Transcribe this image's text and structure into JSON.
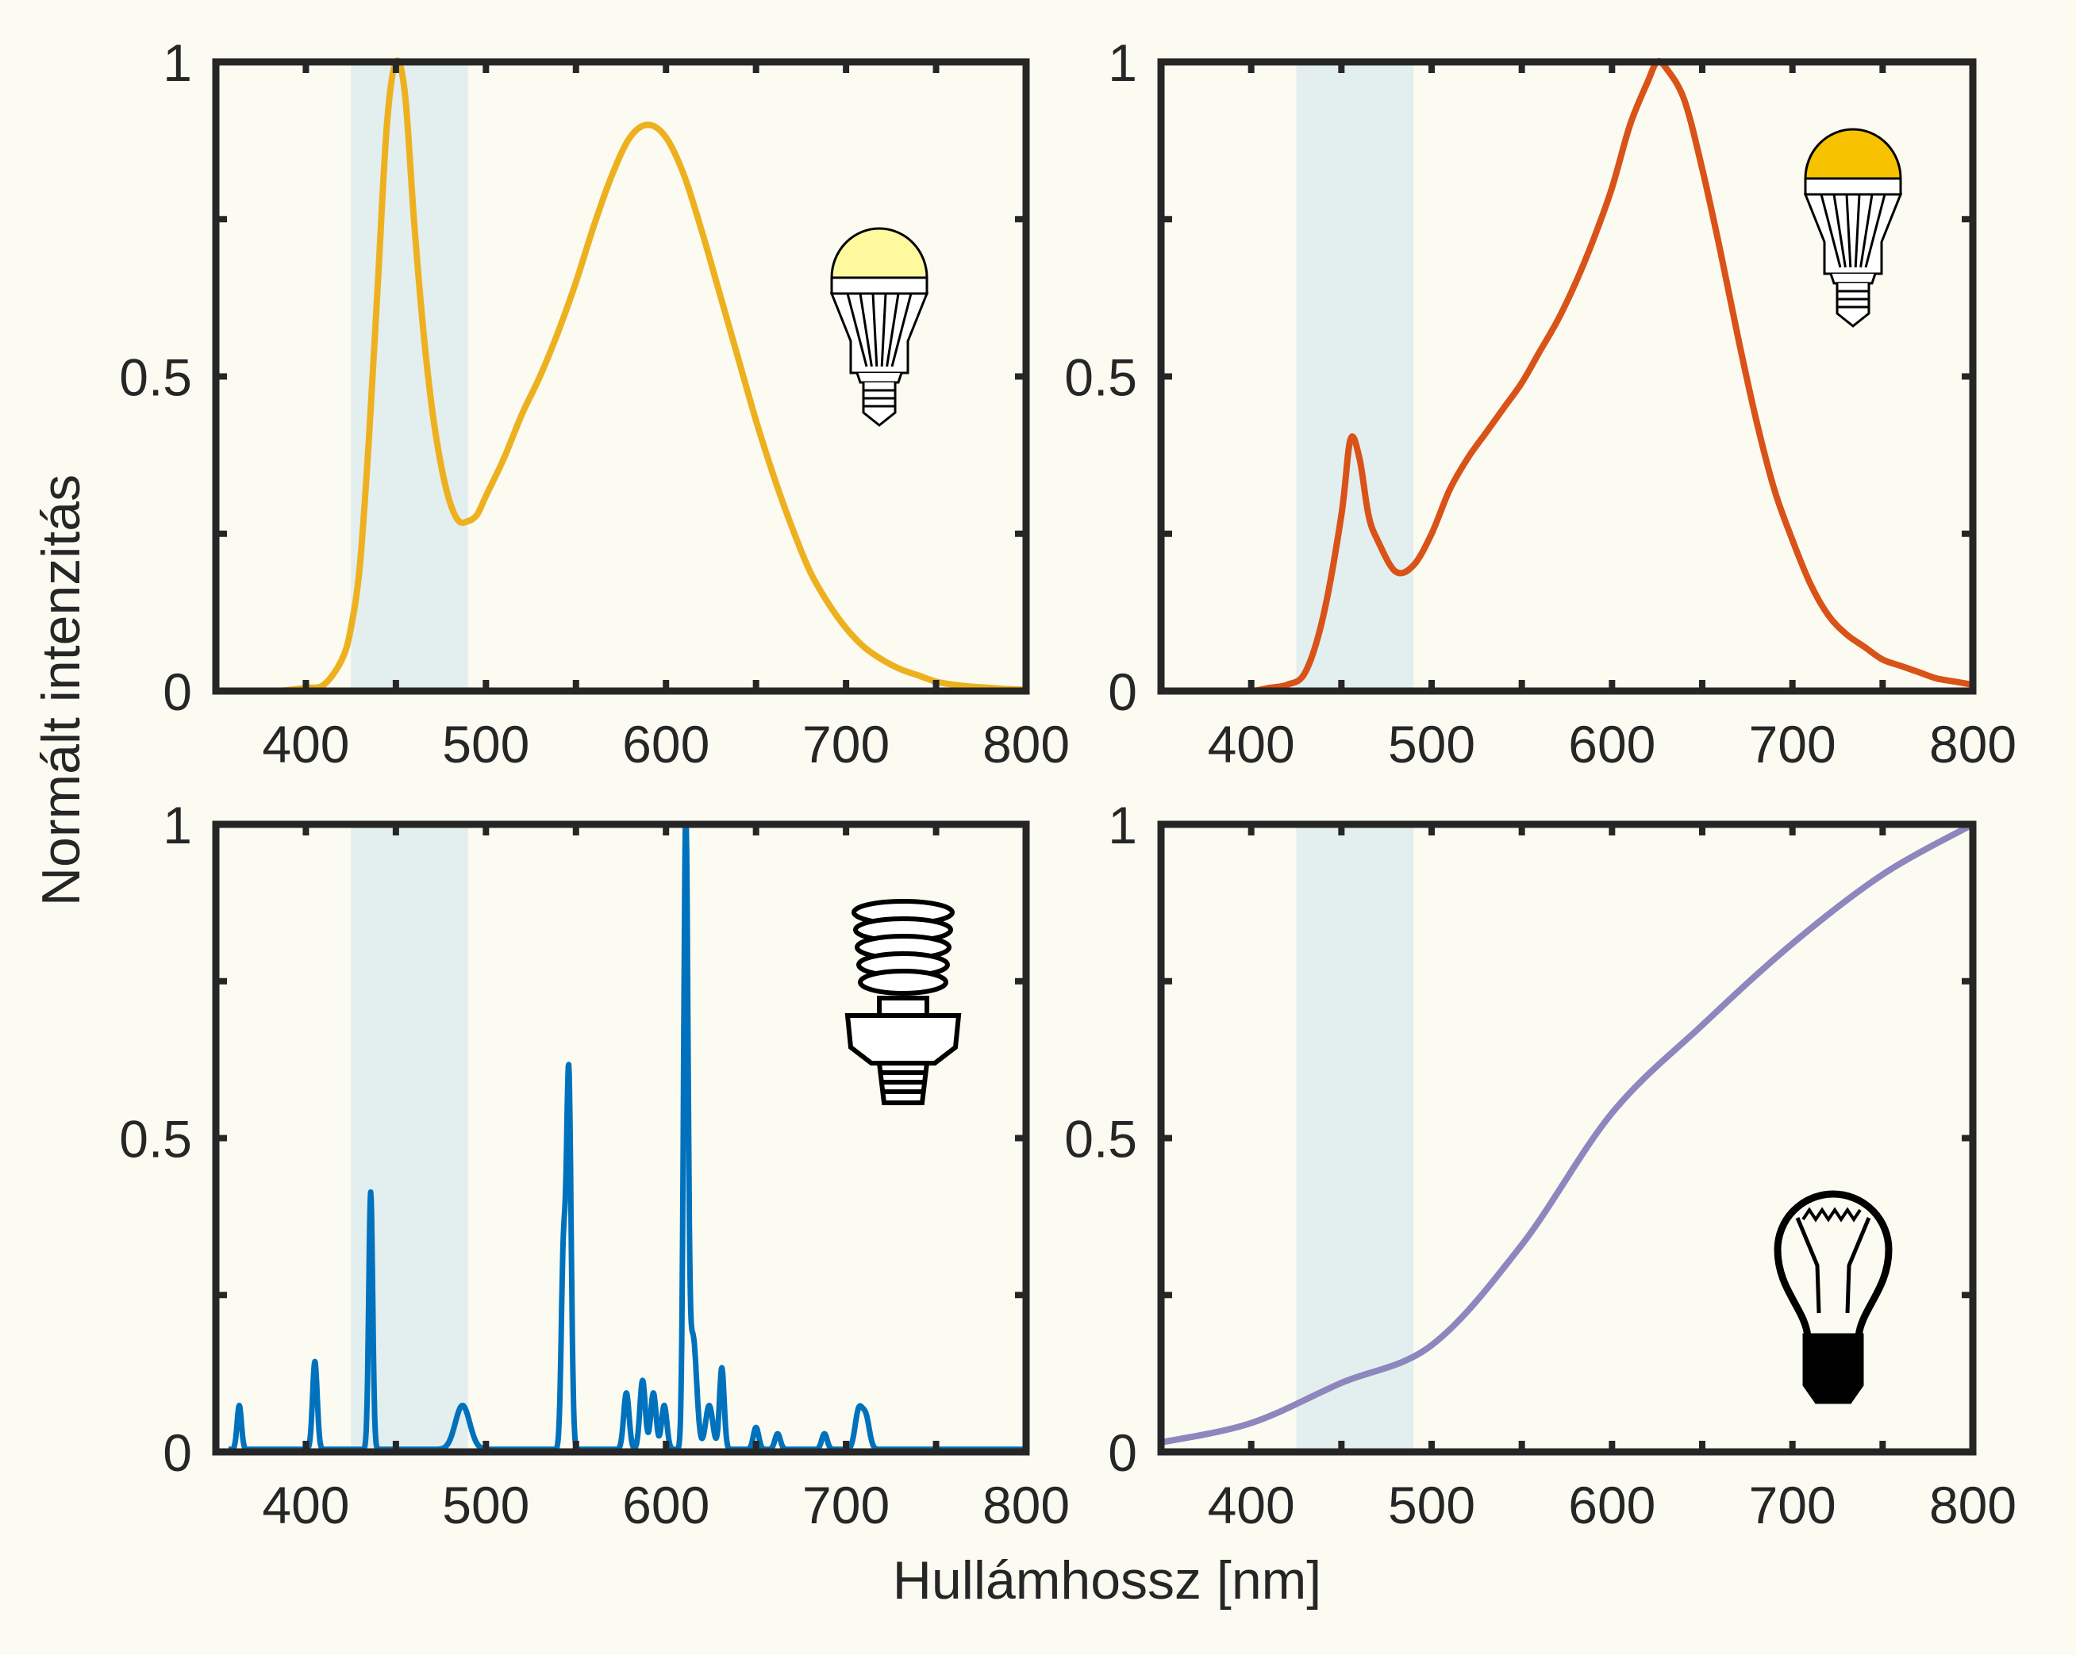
{
  "figure": {
    "xlabel": "Hullámhossz [nm]",
    "ylabel": "Normált intenzitás",
    "background": "#FCFBF2",
    "band_color": "#E3EEEE"
  },
  "chart_data": [
    {
      "type": "line",
      "panel": "top-left",
      "icon": "led-bulb-warm-icon",
      "color": "#EDB120",
      "xlim": [
        350,
        800
      ],
      "ylim": [
        0,
        1
      ],
      "xticks": [
        400,
        500,
        600,
        700,
        800
      ],
      "yticks": [
        "0",
        "0.5",
        "1"
      ],
      "highlight_band": [
        425,
        490
      ],
      "x": [
        385,
        400,
        410,
        420,
        425,
        430,
        435,
        440,
        445,
        450,
        455,
        460,
        465,
        470,
        475,
        480,
        485,
        490,
        495,
        500,
        510,
        520,
        530,
        540,
        550,
        560,
        570,
        580,
        590,
        600,
        610,
        620,
        630,
        640,
        650,
        660,
        670,
        680,
        690,
        700,
        710,
        720,
        730,
        740,
        750,
        760,
        770,
        780,
        790,
        800
      ],
      "y": [
        0,
        0.005,
        0.01,
        0.05,
        0.1,
        0.2,
        0.4,
        0.65,
        0.9,
        1.0,
        0.95,
        0.75,
        0.58,
        0.45,
        0.36,
        0.3,
        0.27,
        0.27,
        0.28,
        0.31,
        0.37,
        0.44,
        0.5,
        0.57,
        0.65,
        0.74,
        0.82,
        0.88,
        0.9,
        0.88,
        0.82,
        0.73,
        0.63,
        0.53,
        0.43,
        0.34,
        0.26,
        0.19,
        0.14,
        0.1,
        0.07,
        0.05,
        0.035,
        0.025,
        0.015,
        0.01,
        0.007,
        0.005,
        0.003,
        0.002
      ]
    },
    {
      "type": "line",
      "panel": "top-right",
      "icon": "led-bulb-amber-icon",
      "color": "#D95319",
      "xlim": [
        350,
        800
      ],
      "ylim": [
        0,
        1
      ],
      "xticks": [
        400,
        500,
        600,
        700,
        800
      ],
      "yticks": [
        "0",
        "0.5",
        "1"
      ],
      "highlight_band": [
        425,
        490
      ],
      "x": [
        385,
        400,
        410,
        420,
        430,
        440,
        450,
        455,
        460,
        465,
        470,
        480,
        490,
        500,
        510,
        520,
        530,
        540,
        550,
        560,
        570,
        580,
        590,
        600,
        610,
        620,
        625,
        630,
        640,
        650,
        660,
        670,
        680,
        690,
        700,
        710,
        720,
        730,
        740,
        750,
        760,
        770,
        780,
        790,
        800
      ],
      "y": [
        0,
        0,
        0.005,
        0.01,
        0.03,
        0.12,
        0.28,
        0.4,
        0.37,
        0.28,
        0.24,
        0.19,
        0.2,
        0.25,
        0.32,
        0.37,
        0.41,
        0.45,
        0.49,
        0.54,
        0.59,
        0.65,
        0.72,
        0.8,
        0.9,
        0.97,
        1.0,
        0.99,
        0.94,
        0.83,
        0.7,
        0.56,
        0.43,
        0.32,
        0.24,
        0.17,
        0.12,
        0.09,
        0.07,
        0.05,
        0.04,
        0.03,
        0.02,
        0.015,
        0.01
      ]
    },
    {
      "type": "line",
      "panel": "bottom-left",
      "icon": "cfl-bulb-icon",
      "color": "#0072BD",
      "xlim": [
        350,
        800
      ],
      "ylim": [
        0,
        1
      ],
      "xticks": [
        400,
        500,
        600,
        700,
        800
      ],
      "yticks": [
        "0",
        "0.5",
        "1"
      ],
      "highlight_band": [
        425,
        490
      ],
      "peaks": [
        {
          "x": 363,
          "y": 0.07,
          "w": 1.2
        },
        {
          "x": 405,
          "y": 0.14,
          "w": 1.3
        },
        {
          "x": 436,
          "y": 0.41,
          "w": 1.1
        },
        {
          "x": 487,
          "y": 0.07,
          "w": 4
        },
        {
          "x": 543,
          "y": 0.3,
          "w": 1.2
        },
        {
          "x": 546,
          "y": 0.6,
          "w": 1.3
        },
        {
          "x": 578,
          "y": 0.09,
          "w": 1.5
        },
        {
          "x": 587,
          "y": 0.11,
          "w": 1.5
        },
        {
          "x": 593,
          "y": 0.09,
          "w": 1.5
        },
        {
          "x": 599,
          "y": 0.07,
          "w": 1.5
        },
        {
          "x": 611,
          "y": 1.0,
          "w": 1.2
        },
        {
          "x": 615,
          "y": 0.18,
          "w": 2
        },
        {
          "x": 624,
          "y": 0.07,
          "w": 2
        },
        {
          "x": 631,
          "y": 0.13,
          "w": 1.3
        },
        {
          "x": 650,
          "y": 0.035,
          "w": 1.5
        },
        {
          "x": 662,
          "y": 0.025,
          "w": 1.5
        },
        {
          "x": 688,
          "y": 0.025,
          "w": 1.5
        },
        {
          "x": 707,
          "y": 0.06,
          "w": 2
        },
        {
          "x": 711,
          "y": 0.05,
          "w": 2
        }
      ]
    },
    {
      "type": "line",
      "panel": "bottom-right",
      "icon": "incandescent-bulb-icon",
      "color": "#8E86BE",
      "xlim": [
        350,
        800
      ],
      "ylim": [
        0,
        1
      ],
      "xticks": [
        400,
        500,
        600,
        700,
        800
      ],
      "yticks": [
        "0",
        "0.5",
        "1"
      ],
      "highlight_band": [
        425,
        490
      ],
      "x": [
        350,
        400,
        450,
        500,
        550,
        600,
        650,
        700,
        750,
        800
      ],
      "y": [
        0.015,
        0.046,
        0.11,
        0.17,
        0.33,
        0.54,
        0.68,
        0.81,
        0.92,
        1.0
      ]
    }
  ]
}
